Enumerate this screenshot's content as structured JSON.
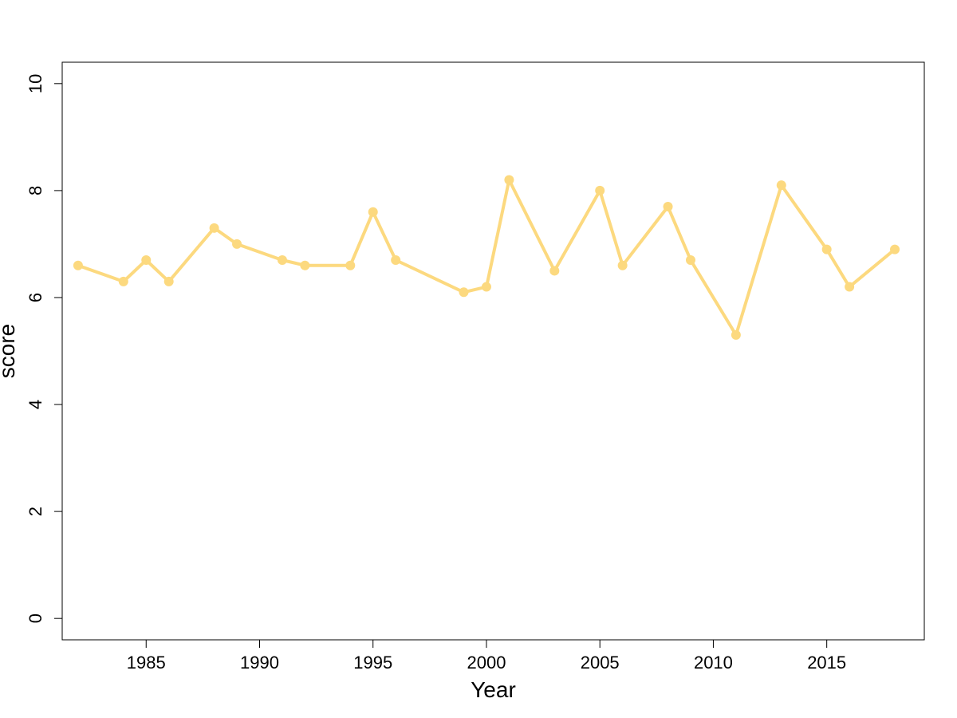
{
  "chart_data": {
    "type": "line",
    "title": "",
    "xlabel": "Year",
    "ylabel": "score",
    "xlim": [
      1981.3,
      2019.3
    ],
    "ylim": [
      -0.4,
      10.4
    ],
    "x_ticks": [
      1985,
      1990,
      1995,
      2000,
      2005,
      2010,
      2015
    ],
    "y_ticks": [
      0,
      2,
      4,
      6,
      8,
      10
    ],
    "grid": false,
    "legend": "none",
    "series": [
      {
        "color": "#FCD97F",
        "points": [
          {
            "x": 1982,
            "y": 6.6
          },
          {
            "x": 1984,
            "y": 6.3
          },
          {
            "x": 1985,
            "y": 6.7
          },
          {
            "x": 1986,
            "y": 6.3
          },
          {
            "x": 1988,
            "y": 7.3
          },
          {
            "x": 1989,
            "y": 7.0
          },
          {
            "x": 1991,
            "y": 6.7
          },
          {
            "x": 1992,
            "y": 6.6
          },
          {
            "x": 1994,
            "y": 6.6
          },
          {
            "x": 1995,
            "y": 7.6
          },
          {
            "x": 1996,
            "y": 6.7
          },
          {
            "x": 1999,
            "y": 6.1
          },
          {
            "x": 2000,
            "y": 6.2
          },
          {
            "x": 2001,
            "y": 8.2
          },
          {
            "x": 2003,
            "y": 6.5
          },
          {
            "x": 2005,
            "y": 8.0
          },
          {
            "x": 2006,
            "y": 6.6
          },
          {
            "x": 2008,
            "y": 7.7
          },
          {
            "x": 2009,
            "y": 6.7
          },
          {
            "x": 2011,
            "y": 5.3
          },
          {
            "x": 2013,
            "y": 8.1
          },
          {
            "x": 2015,
            "y": 6.9
          },
          {
            "x": 2016,
            "y": 6.2
          },
          {
            "x": 2018,
            "y": 6.9
          }
        ]
      }
    ]
  }
}
